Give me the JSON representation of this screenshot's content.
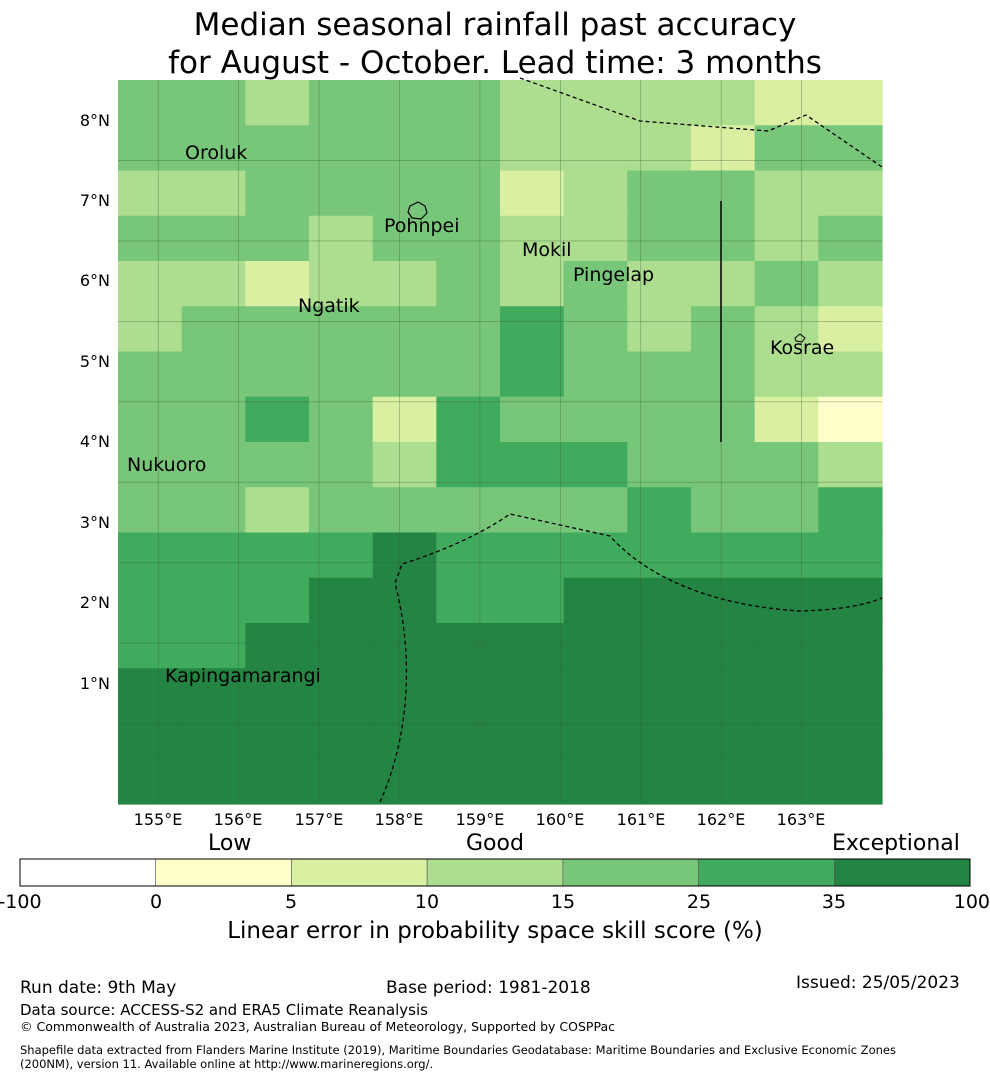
{
  "title_line1": "Median seasonal rainfall past accuracy",
  "title_line2": "for August - October. Lead time: 3 months",
  "map": {
    "lon_labels": [
      "155°E",
      "156°E",
      "157°E",
      "158°E",
      "159°E",
      "160°E",
      "161°E",
      "162°E",
      "163°E"
    ],
    "lat_labels": [
      "8°N",
      "7°N",
      "6°N",
      "5°N",
      "4°N",
      "3°N",
      "2°N",
      "1°N"
    ],
    "places": [
      "Oroluk",
      "Pohnpei",
      "Mokil",
      "Pingelap",
      "Ngatik",
      "Kosrae",
      "Nukuoro",
      "Kapingamarangi"
    ],
    "grid_classes": [
      [
        3,
        3,
        2,
        3,
        3,
        3,
        2,
        2,
        2,
        2,
        1,
        1
      ],
      [
        3,
        3,
        3,
        3,
        3,
        3,
        2,
        2,
        2,
        1,
        3,
        3
      ],
      [
        2,
        2,
        3,
        3,
        3,
        3,
        1,
        2,
        3,
        3,
        2,
        2
      ],
      [
        3,
        3,
        3,
        2,
        3,
        3,
        2,
        2,
        3,
        3,
        2,
        3
      ],
      [
        2,
        2,
        1,
        2,
        2,
        3,
        2,
        3,
        2,
        2,
        3,
        2
      ],
      [
        2,
        3,
        3,
        3,
        3,
        3,
        4,
        3,
        2,
        3,
        2,
        1
      ],
      [
        3,
        3,
        3,
        3,
        3,
        3,
        4,
        3,
        3,
        3,
        2,
        2
      ],
      [
        3,
        3,
        4,
        3,
        1,
        4,
        3,
        3,
        3,
        3,
        1,
        0
      ],
      [
        3,
        3,
        3,
        3,
        2,
        4,
        4,
        4,
        3,
        3,
        3,
        2
      ],
      [
        3,
        3,
        2,
        3,
        3,
        3,
        3,
        3,
        4,
        3,
        3,
        4
      ],
      [
        4,
        4,
        4,
        4,
        5,
        4,
        4,
        4,
        4,
        4,
        4,
        4
      ],
      [
        4,
        4,
        4,
        5,
        5,
        4,
        4,
        5,
        5,
        5,
        5,
        5
      ],
      [
        4,
        4,
        5,
        5,
        5,
        5,
        5,
        5,
        5,
        5,
        5,
        5
      ],
      [
        5,
        5,
        5,
        5,
        5,
        5,
        5,
        5,
        5,
        5,
        5,
        5
      ],
      [
        5,
        5,
        5,
        5,
        5,
        5,
        5,
        5,
        5,
        5,
        5,
        5
      ],
      [
        5,
        5,
        5,
        5,
        5,
        5,
        5,
        5,
        5,
        5,
        5,
        5
      ]
    ]
  },
  "colorbar": {
    "colors": [
      "#ffffff",
      "#ffffcc",
      "#d9f0a3",
      "#addd8e",
      "#78c679",
      "#41ab5d",
      "#238443"
    ],
    "ticks": [
      "-100",
      "0",
      "5",
      "10",
      "15",
      "25",
      "35",
      "100"
    ],
    "categories": [
      "Low",
      "Good",
      "Exceptional"
    ],
    "title": "Linear error in probability space skill score (%)"
  },
  "footer": {
    "run_date": "Run date: 9th May",
    "base_period": "Base period: 1981-2018",
    "issued": "Issued: 25/05/2023",
    "data_source": "Data source: ACCESS-S2 and ERA5 Climate Reanalysis",
    "copyright": "© Commonwealth of Australia 2023, Australian Bureau of Meteorology, Supported by COSPPac",
    "shapefile_line1": "Shapefile data extracted from Flanders Marine Institute (2019), Maritime Boundaries Geodatabase: Maritime Boundaries and Exclusive Economic Zones",
    "shapefile_line2": "(200NM), version 11. Available online at http://www.marineregions.org/."
  }
}
